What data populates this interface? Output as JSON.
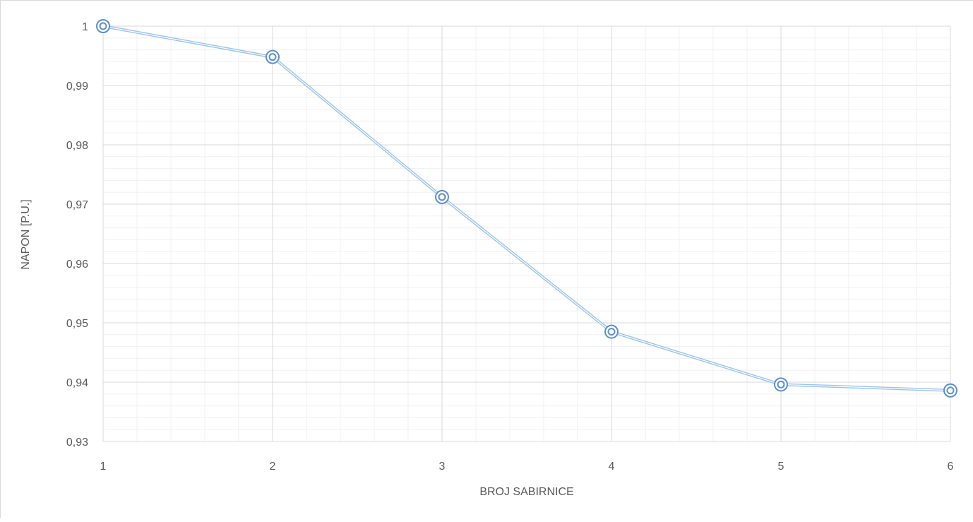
{
  "chart_data": {
    "type": "line",
    "title": "",
    "xlabel": "BROJ SABIRNICE",
    "ylabel": "NAPON [P.U.]",
    "x": [
      1,
      2,
      3,
      4,
      5,
      6
    ],
    "x_tick_labels": [
      "1",
      "2",
      "3",
      "4",
      "5",
      "6"
    ],
    "xlim": [
      1,
      6
    ],
    "ylim": [
      0.93,
      1.0
    ],
    "y_ticks": [
      0.93,
      0.94,
      0.95,
      0.96,
      0.97,
      0.98,
      0.99,
      1.0
    ],
    "y_tick_labels": [
      "0,93",
      "0,94",
      "0,95",
      "0,96",
      "0,97",
      "0,98",
      "0,99",
      "1"
    ],
    "grid": true,
    "minor_grid": true,
    "legend": "none",
    "series": [
      {
        "values": [
          1.0,
          0.9948,
          0.9712,
          0.9485,
          0.9396,
          0.9386
        ],
        "color": "#9dc3e6",
        "marker_color": "#5b8fc7"
      }
    ]
  }
}
